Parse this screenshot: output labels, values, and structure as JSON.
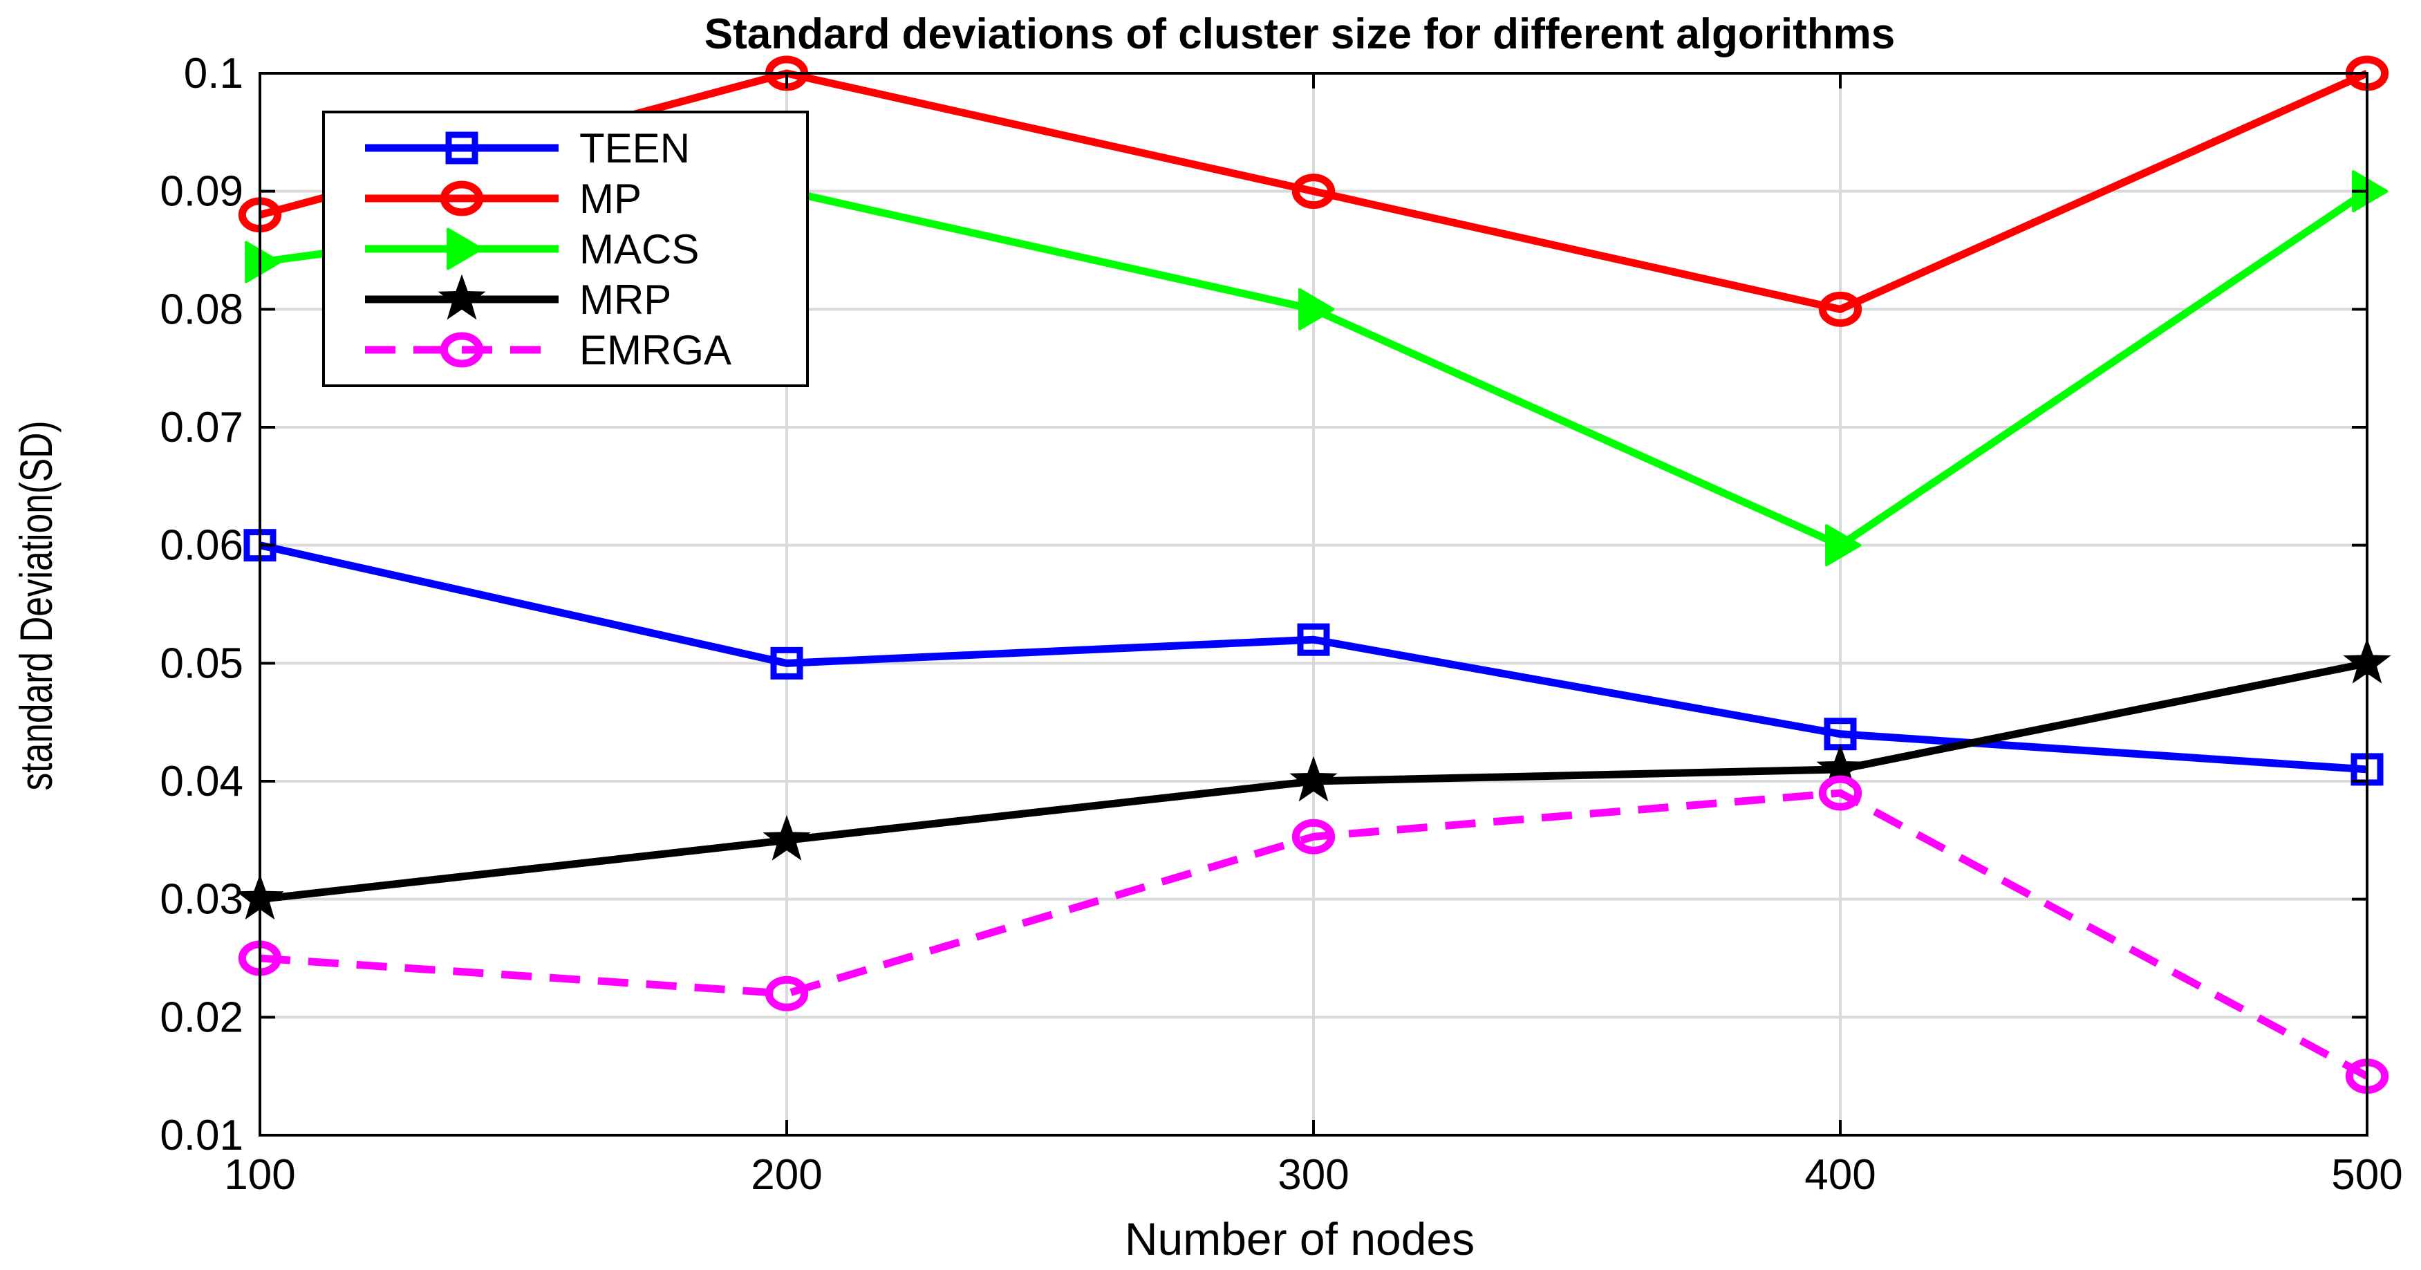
{
  "chart_data": {
    "type": "line",
    "title": "Standard deviations of cluster size for different algorithms",
    "xlabel": "Number of nodes",
    "ylabel": "standard Deviation(SD)",
    "x": [
      100,
      200,
      300,
      400,
      500
    ],
    "xlim": [
      100,
      500
    ],
    "ylim": [
      0.01,
      0.1
    ],
    "xticks": [
      100,
      200,
      300,
      400,
      500
    ],
    "xtick_labels": [
      "100",
      "200",
      "300",
      "400",
      "500"
    ],
    "yticks": [
      0.01,
      0.02,
      0.03,
      0.04,
      0.05,
      0.06,
      0.07,
      0.08,
      0.09,
      0.1
    ],
    "ytick_labels": [
      "0.01",
      "0.02",
      "0.03",
      "0.04",
      "0.05",
      "0.06",
      "0.07",
      "0.08",
      "0.09",
      "0.1"
    ],
    "grid": true,
    "legend_position": "top-left",
    "series": [
      {
        "name": "TEEN",
        "color": "#0000ff",
        "marker": "square",
        "dashed": false,
        "values": [
          0.06,
          0.05,
          0.052,
          0.044,
          0.041
        ]
      },
      {
        "name": "MP",
        "color": "#ff0000",
        "marker": "circle",
        "dashed": false,
        "values": [
          0.088,
          0.1,
          0.09,
          0.08,
          0.1
        ]
      },
      {
        "name": "MACS",
        "color": "#00ff00",
        "marker": "triangle",
        "dashed": false,
        "values": [
          0.084,
          0.09,
          0.08,
          0.06,
          0.09
        ]
      },
      {
        "name": "MRP",
        "color": "#000000",
        "marker": "star",
        "dashed": false,
        "values": [
          0.03,
          0.035,
          0.04,
          0.041,
          0.05
        ]
      },
      {
        "name": "EMRGA",
        "color": "#ff00ff",
        "marker": "circle",
        "dashed": true,
        "values": [
          0.025,
          0.022,
          0.0353,
          0.039,
          0.015
        ]
      }
    ]
  }
}
